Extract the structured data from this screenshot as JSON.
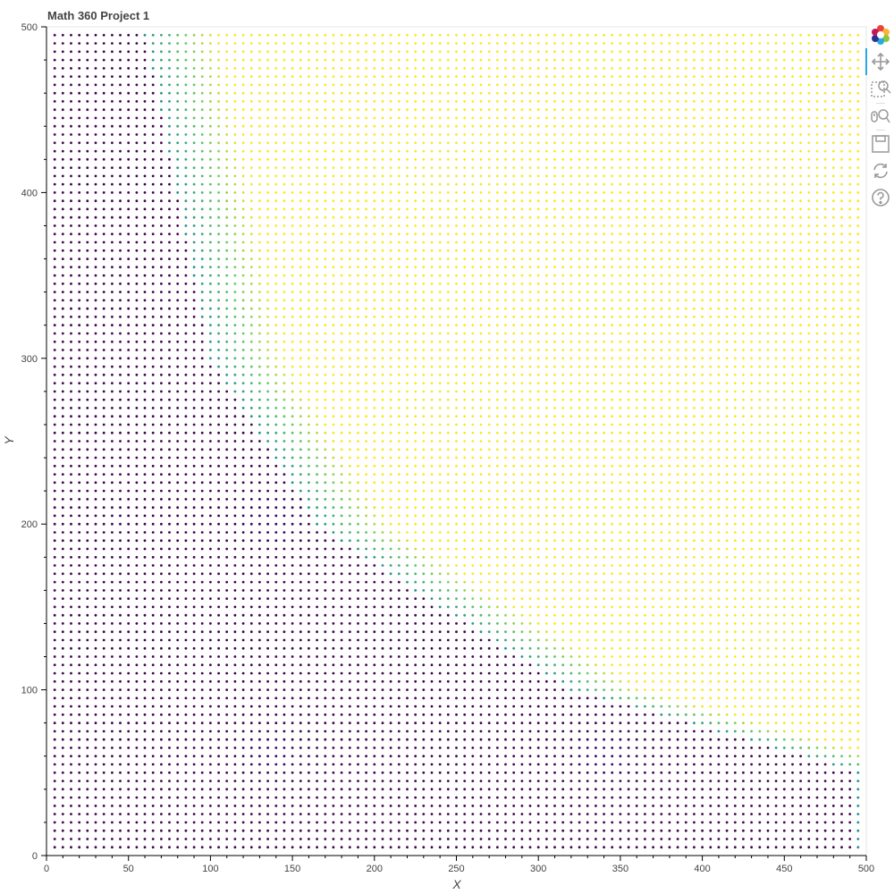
{
  "chart_data": {
    "type": "scatter",
    "title": "Math 360 Project 1",
    "xlabel": "X",
    "ylabel": "Y",
    "xlim": [
      0,
      500
    ],
    "ylim": [
      0,
      500
    ],
    "x_ticks": [
      0,
      50,
      100,
      150,
      200,
      250,
      300,
      350,
      400,
      450,
      500
    ],
    "y_ticks": [
      0,
      100,
      200,
      300,
      400,
      500
    ],
    "grid": {
      "x_start": 5,
      "x_end": 495,
      "y_start": 5,
      "y_end": 495,
      "step": 5
    },
    "colormap": "viridis",
    "colors": {
      "low": "#440154",
      "mid": "#21918c",
      "high": "#fde725"
    },
    "legend": "none",
    "note_of_pattern": "dark purple region bottom-left transitioning through teal to yellow across a boundary running from about (60,500) to (495,25)"
  },
  "toolbar": {
    "tools": [
      {
        "name": "bokeh-logo-icon"
      },
      {
        "name": "pan-icon",
        "active": true
      },
      {
        "name": "box-zoom-icon"
      },
      {
        "name": "wheel-zoom-icon"
      },
      {
        "name": "save-icon"
      },
      {
        "name": "reset-icon"
      },
      {
        "name": "help-icon"
      }
    ]
  }
}
